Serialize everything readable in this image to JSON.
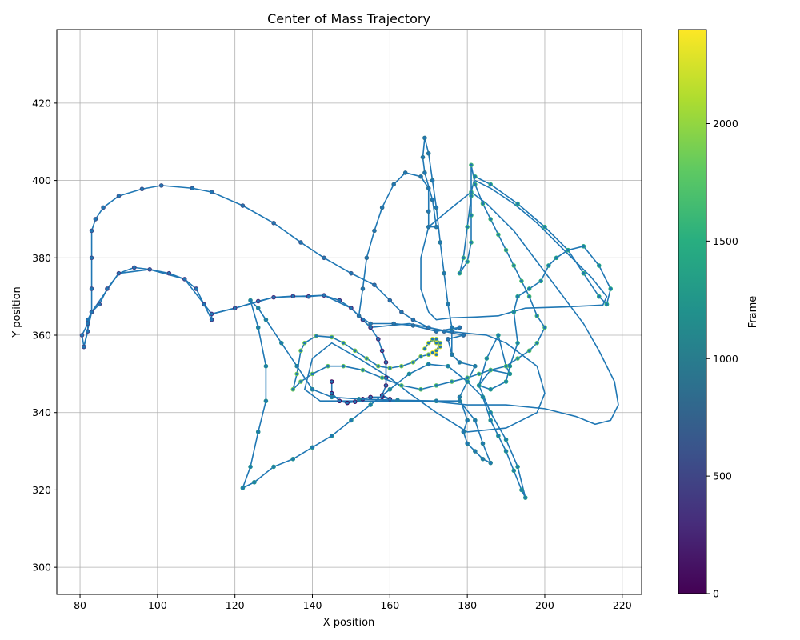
{
  "chart_data": {
    "type": "scatter",
    "title": "Center of Mass Trajectory",
    "xlabel": "X position",
    "ylabel": "Y position",
    "xlim": [
      74,
      225
    ],
    "ylim": [
      293,
      439
    ],
    "x_ticks": [
      80,
      100,
      120,
      140,
      160,
      180,
      200,
      220
    ],
    "y_ticks": [
      300,
      320,
      340,
      360,
      380,
      400,
      420
    ],
    "grid": true,
    "line_color": "#1f77b4",
    "colorbar": {
      "label": "Frame",
      "range": [
        0,
        2400
      ],
      "ticks": [
        0,
        500,
        1000,
        1500,
        2000
      ],
      "colormap": "viridis"
    },
    "series": [
      {
        "frames": [
          0,
          500
        ],
        "points": [
          [
            145,
            348
          ],
          [
            145,
            345
          ],
          [
            147,
            343
          ],
          [
            149,
            342.5
          ],
          [
            151,
            342.8
          ],
          [
            153,
            343.5
          ],
          [
            155,
            344
          ],
          [
            158,
            344
          ],
          [
            160,
            343.5
          ],
          [
            158,
            344.5
          ],
          [
            159,
            347
          ],
          [
            159,
            349
          ],
          [
            159,
            353
          ],
          [
            158,
            356
          ],
          [
            157,
            359
          ],
          [
            155,
            362
          ],
          [
            153,
            364
          ],
          [
            150,
            367
          ],
          [
            147,
            369
          ],
          [
            143,
            370.3
          ],
          [
            139,
            370
          ],
          [
            135,
            370.1
          ],
          [
            130,
            369.8
          ],
          [
            126,
            368.8
          ],
          [
            120,
            367
          ],
          [
            114,
            365.5
          ],
          [
            114,
            364
          ],
          [
            112,
            368
          ],
          [
            110,
            372
          ],
          [
            107,
            374.5
          ],
          [
            103,
            376
          ],
          [
            98,
            377
          ],
          [
            94,
            377.5
          ],
          [
            90,
            376
          ],
          [
            87,
            372
          ],
          [
            85,
            368
          ],
          [
            83,
            366
          ],
          [
            82,
            364
          ],
          [
            82,
            361
          ],
          [
            81,
            357
          ]
        ]
      },
      {
        "frames": [
          500,
          1000
        ],
        "points": [
          [
            81,
            357
          ],
          [
            80.5,
            360
          ],
          [
            82,
            363
          ],
          [
            83,
            366
          ],
          [
            83,
            372
          ],
          [
            83,
            380
          ],
          [
            83,
            387
          ],
          [
            84,
            390
          ],
          [
            86,
            393
          ],
          [
            90,
            396
          ],
          [
            96,
            397.8
          ],
          [
            101,
            398.7
          ],
          [
            109,
            398
          ],
          [
            114,
            397
          ],
          [
            122,
            393.5
          ],
          [
            130,
            389
          ],
          [
            137,
            384
          ],
          [
            143,
            380
          ],
          [
            150,
            376
          ],
          [
            156,
            373
          ],
          [
            160,
            369
          ],
          [
            163,
            366
          ],
          [
            166,
            364
          ],
          [
            170,
            362
          ],
          [
            174,
            361
          ],
          [
            179,
            360
          ],
          [
            175,
            359
          ],
          [
            176,
            355
          ],
          [
            176,
            361
          ],
          [
            178,
            362
          ],
          [
            172,
            361
          ],
          [
            166,
            362.5
          ],
          [
            161,
            363
          ],
          [
            155,
            363
          ],
          [
            152,
            365
          ],
          [
            153,
            372
          ],
          [
            154,
            380
          ],
          [
            156,
            387
          ],
          [
            158,
            393
          ],
          [
            161,
            399
          ],
          [
            164,
            402
          ],
          [
            168,
            401
          ],
          [
            170,
            398
          ],
          [
            170,
            392
          ],
          [
            170,
            388
          ],
          [
            172,
            388
          ],
          [
            171,
            395
          ],
          [
            169,
            402
          ],
          [
            168.5,
            406
          ],
          [
            169,
            411
          ],
          [
            170,
            407
          ],
          [
            171,
            400
          ],
          [
            172,
            393
          ],
          [
            173,
            384
          ],
          [
            174,
            376
          ],
          [
            175,
            368
          ],
          [
            176,
            362
          ],
          [
            176,
            355
          ]
        ]
      },
      {
        "frames": [
          1000,
          1500
        ],
        "points": [
          [
            176,
            355
          ],
          [
            178,
            353
          ],
          [
            182,
            352
          ],
          [
            180,
            348
          ],
          [
            178,
            344
          ],
          [
            180,
            338
          ],
          [
            179,
            335
          ],
          [
            180,
            332
          ],
          [
            182,
            330
          ],
          [
            184,
            328
          ],
          [
            186,
            327
          ],
          [
            184,
            332
          ],
          [
            182,
            338
          ],
          [
            178,
            343
          ],
          [
            172,
            343
          ],
          [
            162,
            343.2
          ],
          [
            152,
            343.5
          ],
          [
            145,
            344
          ],
          [
            140,
            346
          ],
          [
            136,
            352
          ],
          [
            132,
            358
          ],
          [
            128,
            364
          ],
          [
            126,
            367
          ],
          [
            124,
            369
          ],
          [
            126,
            362
          ],
          [
            128,
            352
          ],
          [
            128,
            343
          ],
          [
            126,
            335
          ],
          [
            124,
            326
          ],
          [
            122,
            320.5
          ],
          [
            125,
            322
          ],
          [
            130,
            326
          ],
          [
            135,
            328
          ],
          [
            140,
            331
          ],
          [
            145,
            334
          ],
          [
            150,
            338
          ],
          [
            155,
            342
          ],
          [
            160,
            346
          ],
          [
            165,
            350
          ],
          [
            170,
            352.5
          ],
          [
            175,
            352
          ],
          [
            180,
            348
          ],
          [
            184,
            344
          ],
          [
            186,
            338
          ],
          [
            188,
            334
          ],
          [
            190,
            330
          ],
          [
            192,
            325
          ],
          [
            194,
            320
          ],
          [
            195,
            318
          ],
          [
            193,
            326
          ],
          [
            190,
            333
          ],
          [
            186,
            340
          ],
          [
            183,
            347
          ],
          [
            185,
            354
          ],
          [
            188,
            360
          ],
          [
            190,
            352
          ],
          [
            191,
            350
          ],
          [
            186,
            351
          ],
          [
            183,
            347
          ],
          [
            186,
            346
          ],
          [
            190,
            348
          ],
          [
            191,
            352
          ],
          [
            193,
            358
          ],
          [
            192,
            366
          ],
          [
            193,
            370
          ],
          [
            196,
            372
          ],
          [
            199,
            374
          ],
          [
            201,
            378
          ],
          [
            203,
            380
          ],
          [
            206,
            382
          ],
          [
            210,
            383
          ],
          [
            214,
            378
          ],
          [
            217,
            372
          ],
          [
            216,
            368
          ]
        ]
      },
      {
        "frames": [
          1500,
          2000
        ],
        "points": [
          [
            216,
            368
          ],
          [
            214,
            370
          ],
          [
            210,
            376
          ],
          [
            206,
            382
          ],
          [
            200,
            388
          ],
          [
            193,
            394
          ],
          [
            186,
            399
          ],
          [
            182,
            401
          ],
          [
            181,
            397
          ],
          [
            181,
            391
          ],
          [
            181,
            384
          ],
          [
            180,
            379
          ],
          [
            178,
            376
          ],
          [
            179,
            380
          ],
          [
            180,
            388
          ],
          [
            181,
            396
          ],
          [
            181,
            404
          ],
          [
            182,
            399
          ],
          [
            184,
            394
          ],
          [
            186,
            390
          ],
          [
            188,
            386
          ],
          [
            190,
            382
          ],
          [
            192,
            378
          ],
          [
            194,
            374
          ],
          [
            196,
            370
          ],
          [
            198,
            365
          ],
          [
            200,
            362
          ],
          [
            198,
            358
          ],
          [
            196,
            356
          ],
          [
            193,
            354
          ],
          [
            190,
            352
          ],
          [
            186,
            351
          ],
          [
            183,
            350
          ],
          [
            180,
            349
          ],
          [
            176,
            348
          ],
          [
            172,
            347
          ],
          [
            168,
            346
          ],
          [
            163,
            347
          ],
          [
            158,
            349
          ],
          [
            153,
            351
          ],
          [
            148,
            352
          ],
          [
            144,
            352
          ],
          [
            140,
            350
          ],
          [
            137,
            348
          ],
          [
            135,
            346
          ],
          [
            136,
            350
          ],
          [
            137,
            356
          ],
          [
            138,
            358
          ],
          [
            141,
            359.8
          ],
          [
            145,
            359.5
          ],
          [
            148,
            358
          ],
          [
            151,
            356
          ],
          [
            154,
            354
          ],
          [
            157,
            352
          ],
          [
            160,
            351.5
          ],
          [
            163,
            352
          ],
          [
            166,
            353
          ],
          [
            168,
            354.5
          ],
          [
            170,
            355
          ]
        ]
      },
      {
        "frames": [
          2000,
          2400
        ],
        "points": [
          [
            170,
            355
          ],
          [
            172,
            356
          ],
          [
            173,
            358
          ],
          [
            172,
            359
          ],
          [
            170,
            358
          ],
          [
            169,
            356.5
          ],
          [
            170,
            358
          ],
          [
            171,
            359
          ],
          [
            172,
            358
          ],
          [
            173,
            357
          ],
          [
            172,
            356
          ],
          [
            171,
            355.5
          ],
          [
            172,
            355
          ]
        ]
      }
    ],
    "connecting_line": [
      [
        81,
        357
      ],
      [
        83,
        366
      ],
      [
        90,
        376
      ],
      [
        98,
        377
      ],
      [
        107,
        374.5
      ],
      [
        114,
        365.5
      ],
      [
        120,
        367
      ],
      [
        130,
        369.8
      ],
      [
        143,
        370.3
      ],
      [
        150,
        367
      ],
      [
        155,
        362
      ],
      [
        165,
        363
      ],
      [
        175,
        361
      ],
      [
        185,
        360
      ],
      [
        190,
        358
      ],
      [
        198,
        352
      ],
      [
        200,
        345
      ],
      [
        198,
        340
      ],
      [
        190,
        336
      ],
      [
        180,
        335
      ],
      [
        172,
        340
      ],
      [
        165,
        345
      ],
      [
        160,
        349
      ],
      [
        152,
        354
      ],
      [
        145,
        358
      ],
      [
        140,
        354
      ],
      [
        138,
        346
      ],
      [
        142,
        343
      ],
      [
        150,
        343
      ],
      [
        160,
        343
      ],
      [
        170,
        343
      ],
      [
        180,
        342
      ],
      [
        190,
        342
      ],
      [
        200,
        341
      ],
      [
        208,
        339
      ],
      [
        213,
        337
      ],
      [
        217,
        338
      ],
      [
        219,
        342
      ],
      [
        218,
        348
      ],
      [
        214,
        356
      ],
      [
        210,
        363
      ],
      [
        204,
        371
      ],
      [
        198,
        379
      ],
      [
        192,
        387
      ],
      [
        185,
        394
      ],
      [
        181,
        397
      ],
      [
        176,
        393
      ],
      [
        170,
        388
      ],
      [
        168,
        380
      ],
      [
        168,
        372
      ],
      [
        170,
        366
      ],
      [
        172,
        364
      ],
      [
        176,
        364.5
      ],
      [
        182,
        364.7
      ],
      [
        188,
        365
      ],
      [
        195,
        367
      ],
      [
        205,
        367.3
      ],
      [
        215,
        367.8
      ],
      [
        216,
        370
      ],
      [
        212,
        375
      ],
      [
        205,
        382
      ],
      [
        198,
        389
      ],
      [
        192,
        394
      ],
      [
        186,
        398
      ],
      [
        182,
        400
      ]
    ]
  }
}
